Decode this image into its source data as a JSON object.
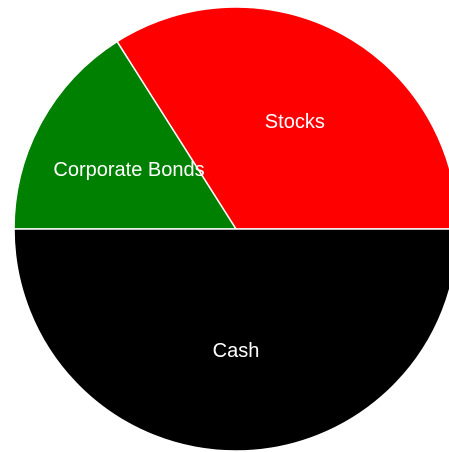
{
  "chart_data": {
    "type": "pie",
    "series": [
      {
        "slices": [
          {
            "label": "Stocks",
            "value": 34,
            "color": "#ff0000"
          },
          {
            "label": "Corporate Bonds",
            "value": 16,
            "color": "#008000"
          },
          {
            "label": "Cash",
            "value": 50,
            "color": "#000000"
          }
        ]
      }
    ],
    "slice_border_color": "#ffffff",
    "legend": "none"
  }
}
